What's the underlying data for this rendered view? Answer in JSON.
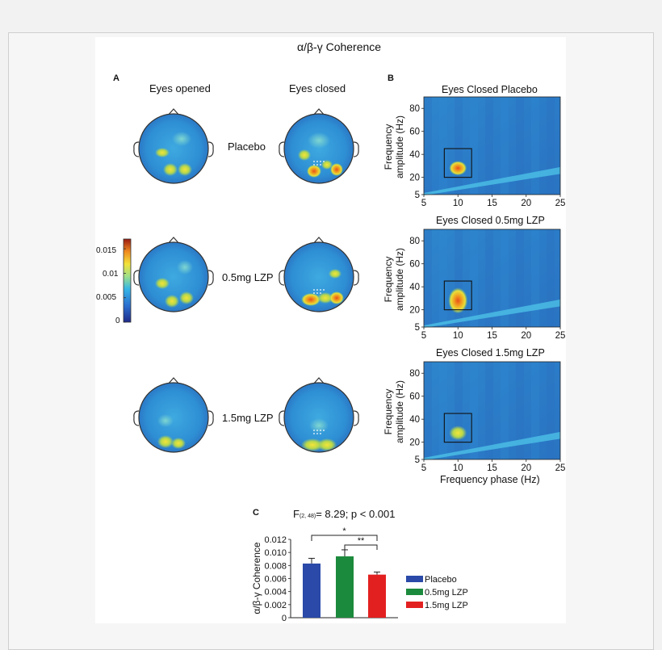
{
  "figure": {
    "title": "α/β-γ Coherence",
    "panel_a": {
      "letter": "A",
      "col_labels": [
        "Eyes opened",
        "Eyes closed"
      ],
      "row_labels": [
        "Placebo",
        "0.5mg LZP",
        "1.5mg LZP"
      ],
      "colorbar": {
        "ticks": [
          "0.015",
          "0.01",
          "0.005",
          "0"
        ],
        "min": 0,
        "max": 0.017
      }
    },
    "panel_b": {
      "letter": "B",
      "plots": [
        {
          "title": "Eyes Closed Placebo"
        },
        {
          "title": "Eyes Closed 0.5mg LZP"
        },
        {
          "title": "Eyes Closed 1.5mg LZP"
        }
      ],
      "ylabel_line1": "Frequency",
      "ylabel_line2": "amplitude (Hz)",
      "xlabel": "Frequency phase (Hz)",
      "xticks": [
        "5",
        "10",
        "15",
        "20",
        "25"
      ],
      "yticks": [
        "80",
        "60",
        "40",
        "20",
        "5"
      ]
    },
    "panel_c": {
      "letter": "C",
      "stat_prefix": "F",
      "stat_sub": "(2, 48)",
      "stat_suffix": "= 8.29; p < 0.001",
      "ylabel": "α/β-γ Coherence",
      "sig_outer": "*",
      "sig_inner": "**",
      "yticks": [
        "0.012",
        "0.010",
        "0.008",
        "0.006",
        "0.004",
        "0.002",
        "0"
      ]
    }
  },
  "chart_data": {
    "type": "bar",
    "categories": [
      "Placebo",
      "0.5mg LZP",
      "1.5mg LZP"
    ],
    "values": [
      0.0083,
      0.0094,
      0.0066
    ],
    "errors": [
      0.0008,
      0.001,
      0.0004
    ],
    "ylabel": "α/β-γ Coherence",
    "ylim": [
      0,
      0.012
    ],
    "colors": [
      "#2a49a8",
      "#1c8a3c",
      "#e32020"
    ],
    "legend": [
      "Placebo",
      "0.5mg LZP",
      "1.5mg LZP"
    ],
    "legend_position": "right"
  }
}
